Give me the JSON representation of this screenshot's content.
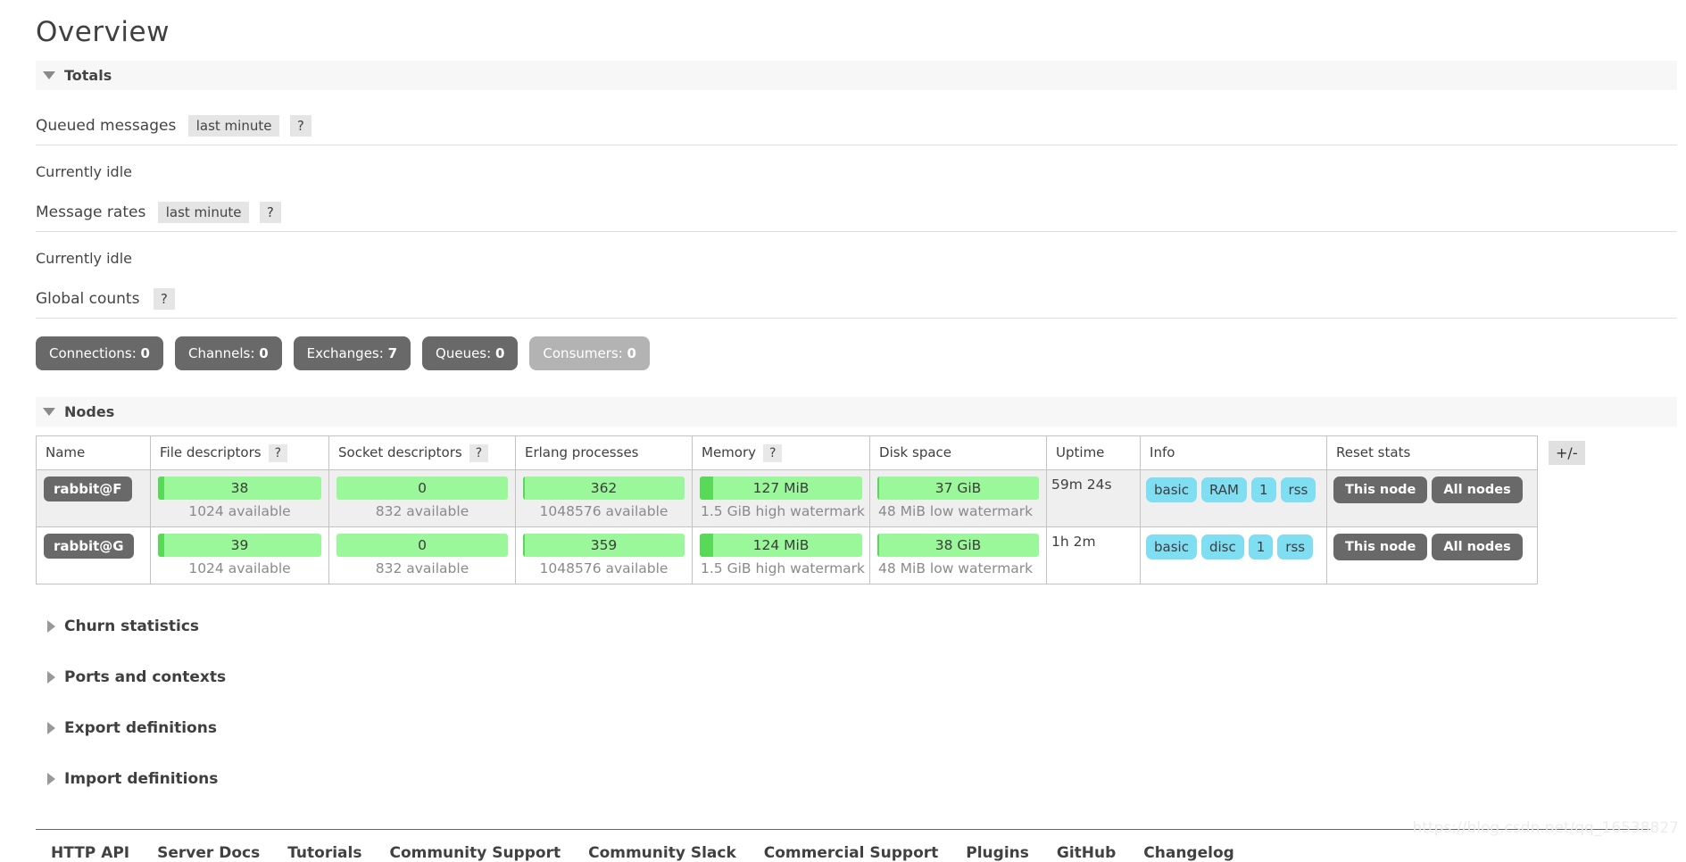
{
  "page": {
    "title": "Overview"
  },
  "totals": {
    "header": "Totals",
    "queued": {
      "label": "Queued messages",
      "period": "last minute",
      "help": "?",
      "status": "Currently idle"
    },
    "rates": {
      "label": "Message rates",
      "period": "last minute",
      "help": "?",
      "status": "Currently idle"
    },
    "global": {
      "label": "Global counts",
      "help": "?",
      "counts": [
        {
          "label": "Connections:",
          "value": "0"
        },
        {
          "label": "Channels:",
          "value": "0"
        },
        {
          "label": "Exchanges:",
          "value": "7"
        },
        {
          "label": "Queues:",
          "value": "0"
        },
        {
          "label": "Consumers:",
          "value": "0"
        }
      ]
    }
  },
  "nodes": {
    "header": "Nodes",
    "plusminus": "+/-",
    "columns": [
      {
        "label": "Name"
      },
      {
        "label": "File descriptors",
        "help": "?"
      },
      {
        "label": "Socket descriptors",
        "help": "?"
      },
      {
        "label": "Erlang processes"
      },
      {
        "label": "Memory",
        "help": "?"
      },
      {
        "label": "Disk space"
      },
      {
        "label": "Uptime"
      },
      {
        "label": "Info"
      },
      {
        "label": "Reset stats"
      }
    ],
    "rows": [
      {
        "name": "rabbit@F",
        "fd": {
          "value": "38",
          "sub": "1024 available",
          "pct": 4
        },
        "sock": {
          "value": "0",
          "sub": "832 available",
          "pct": 0
        },
        "erlang": {
          "value": "362",
          "sub": "1048576 available",
          "pct": 1
        },
        "memory": {
          "value": "127 MiB",
          "sub": "1.5 GiB high watermark",
          "pct": 8
        },
        "disk": {
          "value": "37 GiB",
          "sub": "48 MiB low watermark",
          "pct": 1
        },
        "uptime": "59m 24s",
        "info": [
          "basic",
          "RAM",
          "1",
          "rss"
        ],
        "reset": [
          "This node",
          "All nodes"
        ]
      },
      {
        "name": "rabbit@G",
        "fd": {
          "value": "39",
          "sub": "1024 available",
          "pct": 4
        },
        "sock": {
          "value": "0",
          "sub": "832 available",
          "pct": 0
        },
        "erlang": {
          "value": "359",
          "sub": "1048576 available",
          "pct": 1
        },
        "memory": {
          "value": "124 MiB",
          "sub": "1.5 GiB high watermark",
          "pct": 8
        },
        "disk": {
          "value": "38 GiB",
          "sub": "48 MiB low watermark",
          "pct": 1
        },
        "uptime": "1h 2m",
        "info": [
          "basic",
          "disc",
          "1",
          "rss"
        ],
        "reset": [
          "This node",
          "All nodes"
        ]
      }
    ]
  },
  "sections": [
    {
      "label": "Churn statistics"
    },
    {
      "label": "Ports and contexts"
    },
    {
      "label": "Export definitions"
    },
    {
      "label": "Import definitions"
    }
  ],
  "footer": {
    "links": [
      "HTTP API",
      "Server Docs",
      "Tutorials",
      "Community Support",
      "Community Slack",
      "Commercial Support",
      "Plugins",
      "GitHub",
      "Changelog"
    ]
  },
  "watermark": "https://blog.csdn.net/qq_16538827",
  "colors": {
    "bar_bg": "#9af79a",
    "bar_fill": "#58d958",
    "tag_bg": "#7fdef2",
    "button_bg": "#696969",
    "button_muted_bg": "#b3b3b3",
    "section_bg": "#f7f7f7"
  }
}
